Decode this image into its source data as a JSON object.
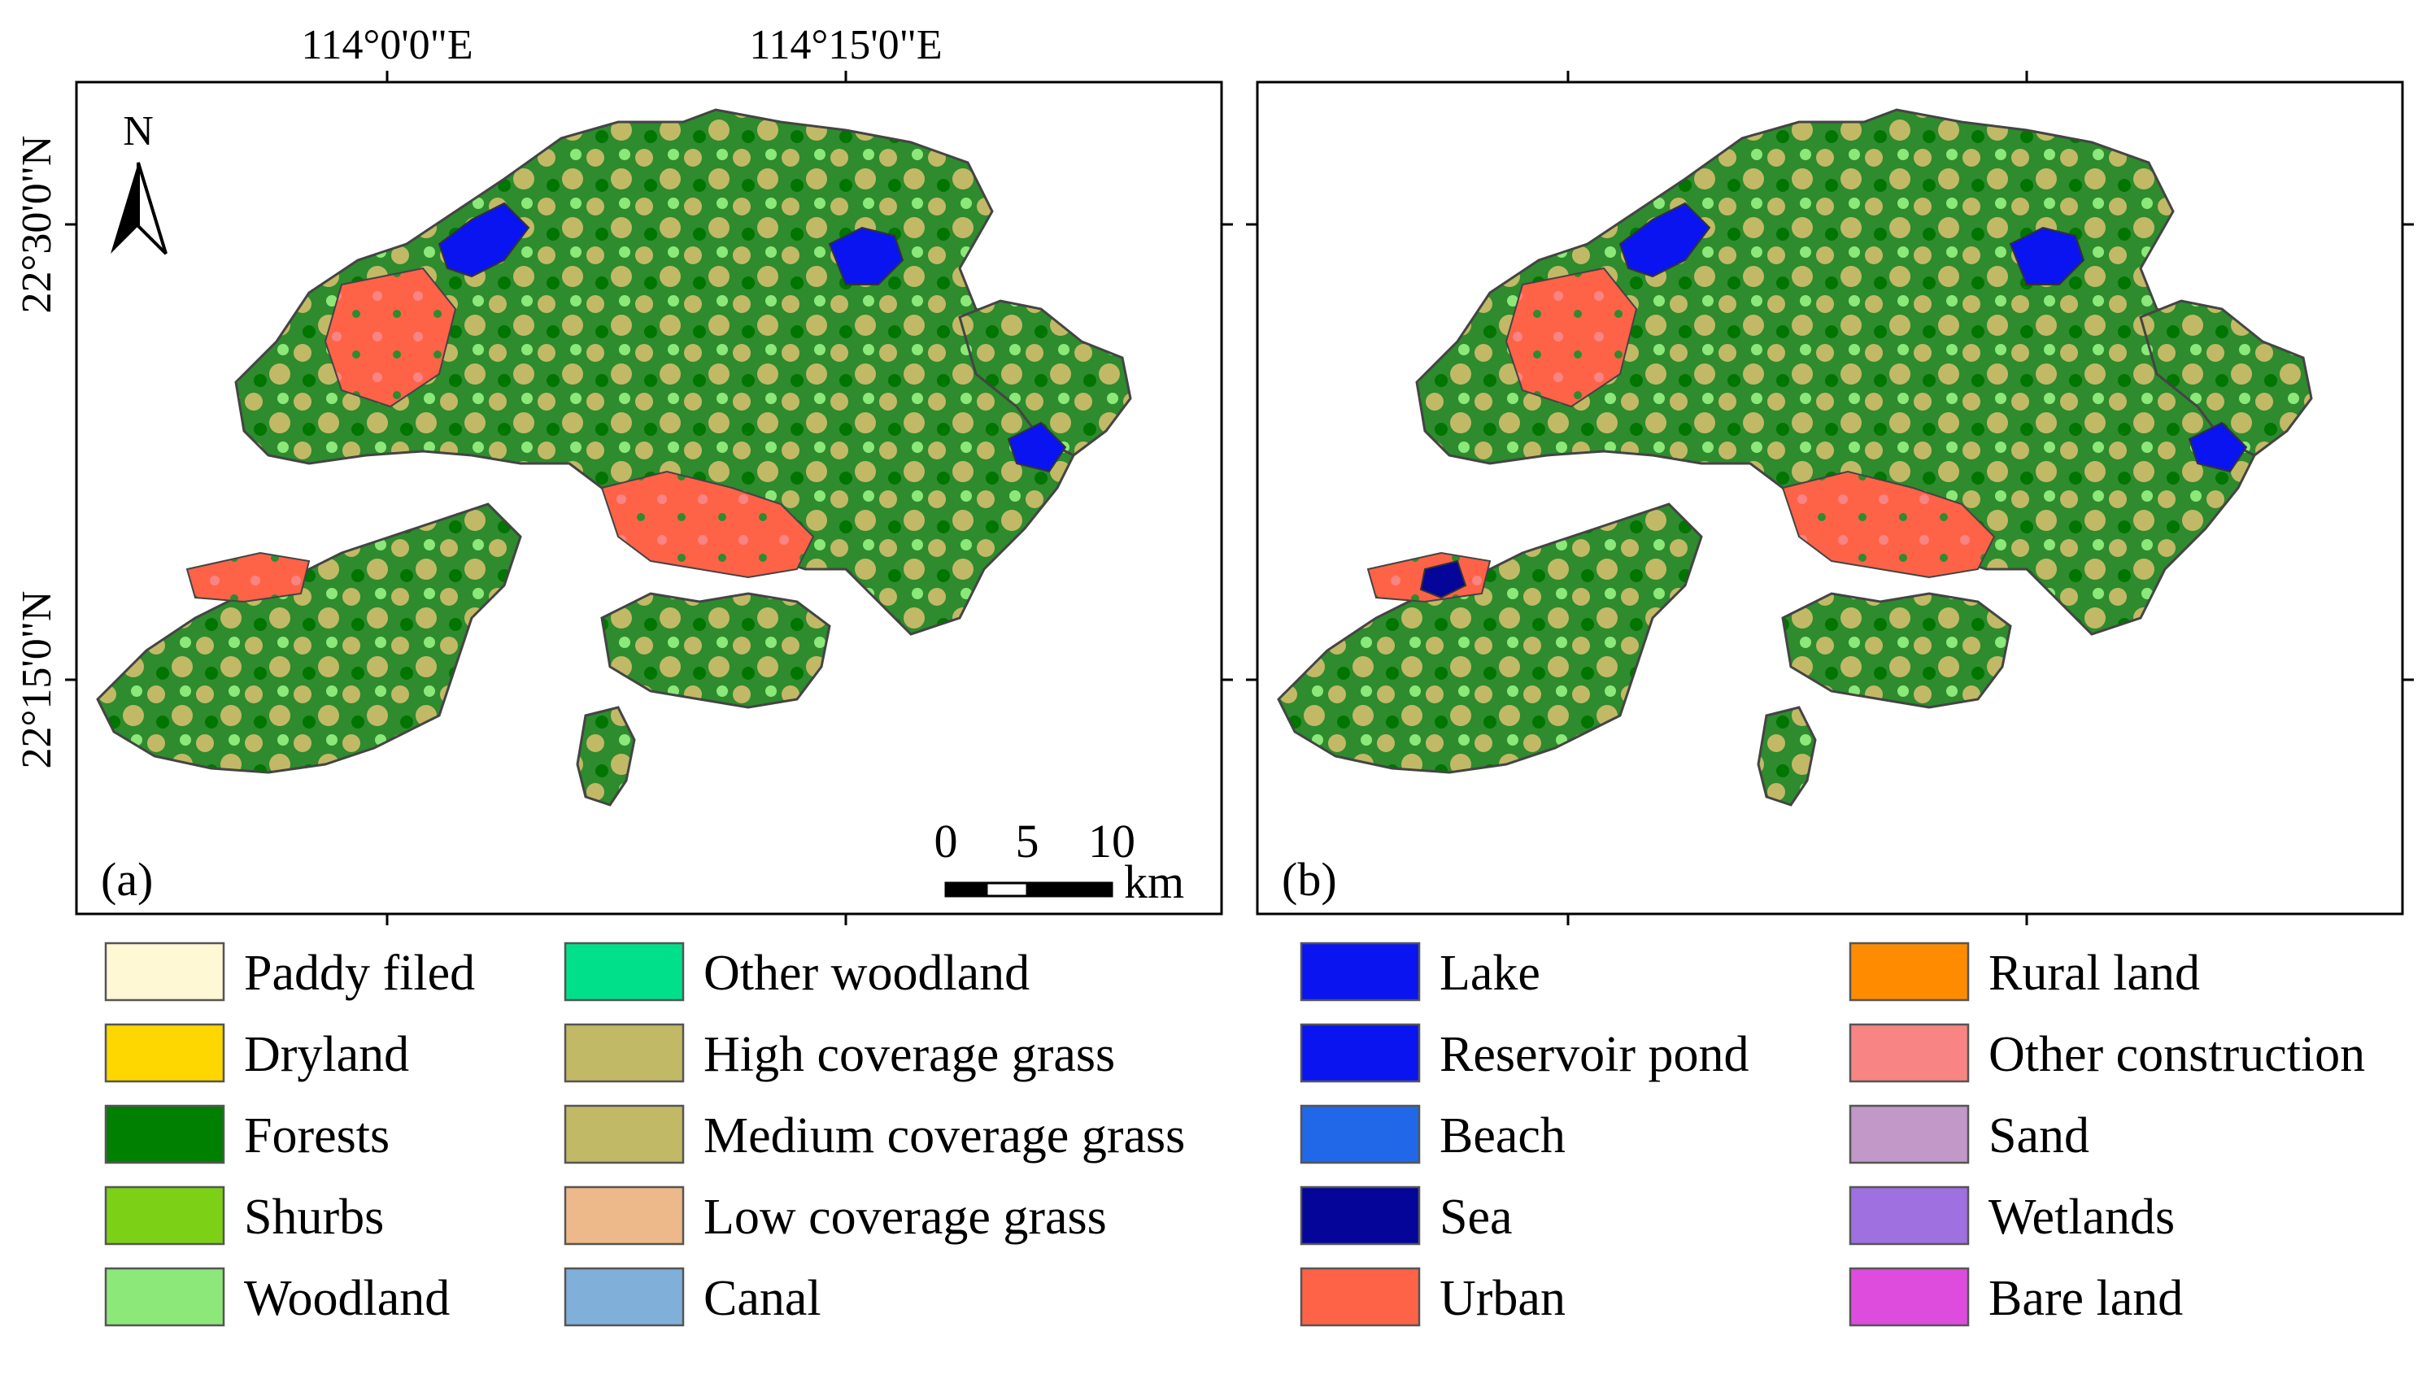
{
  "lon_labels": [
    "114°0'0\"E",
    "114°15'0\"E"
  ],
  "lat_labels": [
    "22°30'0\"N",
    "22°15'0\"N"
  ],
  "north_label": "N",
  "scalebar": {
    "ticks": [
      "0",
      "5",
      "10"
    ],
    "unit": "km"
  },
  "panels": [
    {
      "label": "(a)",
      "reservoir_variant": false
    },
    {
      "label": "(b)",
      "reservoir_variant": true
    }
  ],
  "legend": [
    {
      "label": "Paddy filed",
      "color": "#FFF8D4"
    },
    {
      "label": "Dryland",
      "color": "#FFD700"
    },
    {
      "label": "Forests",
      "color": "#008000"
    },
    {
      "label": "Shurbs",
      "color": "#7CD116"
    },
    {
      "label": "Woodland",
      "color": "#8DE87A"
    },
    {
      "label": "Other woodland",
      "color": "#00E08A"
    },
    {
      "label": "High coverage grass",
      "color": "#C2B966"
    },
    {
      "label": "Medium coverage grass",
      "color": "#C2B966"
    },
    {
      "label": "Low coverage grass",
      "color": "#EDB98A"
    },
    {
      "label": "Canal",
      "color": "#80AFDA"
    },
    {
      "label": "Lake",
      "color": "#0A14F0"
    },
    {
      "label": "Reservoir pond",
      "color": "#0A14F0"
    },
    {
      "label": "Beach",
      "color": "#2068E8"
    },
    {
      "label": "Sea",
      "color": "#05059A"
    },
    {
      "label": "Urban",
      "color": "#FF6347"
    },
    {
      "label": "Rural land",
      "color": "#FF8C00"
    },
    {
      "label": "Other construction",
      "color": "#F88484"
    },
    {
      "label": "Sand",
      "color": "#C198C8"
    },
    {
      "label": "Wetlands",
      "color": "#9E70E0"
    },
    {
      "label": "Bare land",
      "color": "#DD4CDD"
    }
  ]
}
